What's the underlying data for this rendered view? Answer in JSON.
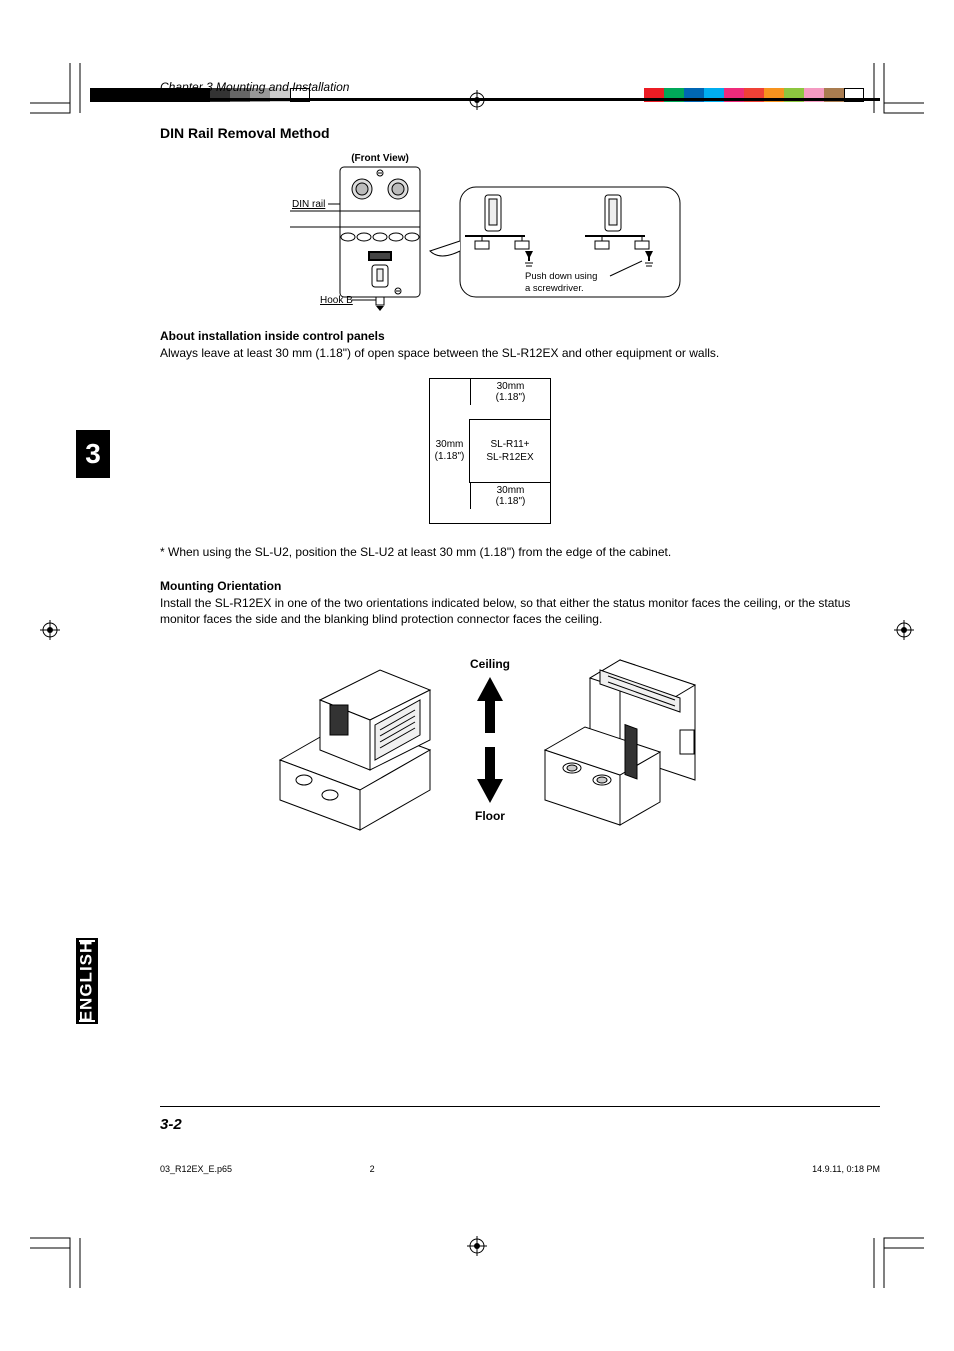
{
  "color_bars": {
    "left": [
      "#000000",
      "#000000",
      "#000000",
      "#000000",
      "#000000",
      "#000000",
      "#333333",
      "#666666",
      "#999999",
      "#cccccc",
      "#ffffff"
    ],
    "right": [
      "#ec1c24",
      "#00a859",
      "#0066b3",
      "#00adef",
      "#ee2a7b",
      "#ef4136",
      "#f7931e",
      "#8dc63f",
      "#f49ac1",
      "#a97c50",
      "#ffffff"
    ]
  },
  "chapter_header": "Chapter 3  Mounting and Installation",
  "chapter_number": "3",
  "language_tab": "ENGLISH",
  "section_title": "DIN Rail Removal Method",
  "din_diagram": {
    "front_view": "(Front View)",
    "din_rail": "DIN rail",
    "hook_b": "Hook B",
    "callout": "Push down using a screwdriver."
  },
  "about_heading": "About installation inside control panels",
  "about_body": "Always leave at least 30 mm (1.18\") of open space between the SL-R12EX and other equipment or walls.",
  "clearance": {
    "top": "30mm (1.18\")",
    "left_a": "30mm",
    "left_b": "(1.18\")",
    "center": "SL-R11+\nSL-R12EX",
    "bottom": "30mm (1.18\")"
  },
  "note": "* When using the SL-U2, position the SL-U2 at least 30 mm (1.18\") from the edge of the cabinet.",
  "mounting_heading": "Mounting Orientation",
  "mounting_body": "Install the SL-R12EX in one of the two orientations indicated below, so that either the status monitor faces the ceiling, or the status monitor faces the side and the blanking blind protection connector faces the ceiling.",
  "orientation": {
    "ceiling": "Ceiling",
    "floor": "Floor"
  },
  "page_number": "3-2",
  "footer": {
    "file": "03_R12EX_E.p65",
    "page": "2",
    "timestamp": "14.9.11, 0:18 PM"
  }
}
